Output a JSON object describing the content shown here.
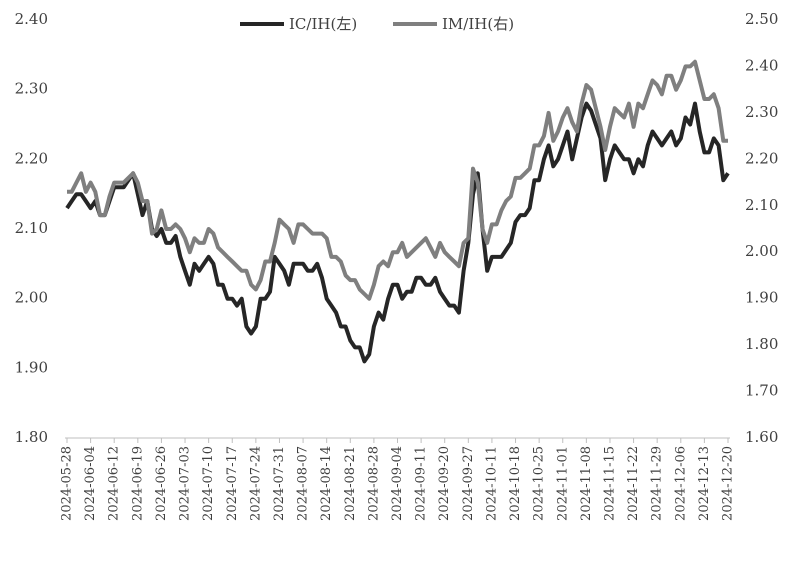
{
  "chart_data": {
    "type": "line",
    "categories": [
      "2024-05-28",
      null,
      null,
      null,
      null,
      "2024-06-04",
      null,
      null,
      null,
      null,
      "2024-06-12",
      null,
      null,
      null,
      null,
      "2024-06-19",
      null,
      null,
      null,
      null,
      "2024-06-26",
      null,
      null,
      null,
      null,
      "2024-07-03",
      null,
      null,
      null,
      null,
      "2024-07-10",
      null,
      null,
      null,
      null,
      "2024-07-17",
      null,
      null,
      null,
      null,
      "2024-07-24",
      null,
      null,
      null,
      null,
      "2024-07-31",
      null,
      null,
      null,
      null,
      "2024-08-07",
      null,
      null,
      null,
      null,
      "2024-08-14",
      null,
      null,
      null,
      null,
      "2024-08-21",
      null,
      null,
      null,
      null,
      "2024-08-28",
      null,
      null,
      null,
      null,
      "2024-09-04",
      null,
      null,
      null,
      null,
      "2024-09-11",
      null,
      null,
      null,
      null,
      "2024-09-20",
      null,
      null,
      null,
      null,
      "2024-09-27",
      null,
      null,
      null,
      null,
      "2024-10-11",
      null,
      null,
      null,
      null,
      "2024-10-18",
      null,
      null,
      null,
      null,
      "2024-10-25",
      null,
      null,
      null,
      null,
      "2024-11-01",
      null,
      null,
      null,
      null,
      "2024-11-08",
      null,
      null,
      null,
      null,
      "2024-11-15",
      null,
      null,
      null,
      null,
      "2024-11-22",
      null,
      null,
      null,
      null,
      "2024-11-29",
      null,
      null,
      null,
      null,
      "2024-12-06",
      null,
      null,
      null,
      null,
      "2024-12-13",
      null,
      null,
      null,
      null,
      "2024-12-20"
    ],
    "series": [
      {
        "name": "IC/IH(左)",
        "color": "#262626",
        "axis": "y",
        "values": [
          2.13,
          2.14,
          2.15,
          2.15,
          2.14,
          2.13,
          2.14,
          2.12,
          2.12,
          2.14,
          2.16,
          2.16,
          2.16,
          2.17,
          2.18,
          2.15,
          2.12,
          2.14,
          2.1,
          2.09,
          2.1,
          2.08,
          2.08,
          2.09,
          2.06,
          2.04,
          2.02,
          2.05,
          2.04,
          2.05,
          2.06,
          2.05,
          2.02,
          2.02,
          2.0,
          2.0,
          1.99,
          2.0,
          1.96,
          1.95,
          1.96,
          2.0,
          2.0,
          2.01,
          2.06,
          2.05,
          2.04,
          2.02,
          2.05,
          2.05,
          2.05,
          2.04,
          2.04,
          2.05,
          2.03,
          2.0,
          1.99,
          1.98,
          1.96,
          1.96,
          1.94,
          1.93,
          1.93,
          1.91,
          1.92,
          1.96,
          1.98,
          1.97,
          2.0,
          2.02,
          2.02,
          2.0,
          2.01,
          2.01,
          2.03,
          2.03,
          2.02,
          2.02,
          2.03,
          2.01,
          2.0,
          1.99,
          1.99,
          1.98,
          2.04,
          2.08,
          2.15,
          2.18,
          2.1,
          2.04,
          2.06,
          2.06,
          2.06,
          2.07,
          2.08,
          2.11,
          2.12,
          2.12,
          2.13,
          2.17,
          2.17,
          2.2,
          2.22,
          2.19,
          2.2,
          2.22,
          2.24,
          2.2,
          2.23,
          2.26,
          2.28,
          2.27,
          2.25,
          2.23,
          2.17,
          2.2,
          2.22,
          2.21,
          2.2,
          2.2,
          2.18,
          2.2,
          2.19,
          2.22,
          2.24,
          2.23,
          2.22,
          2.23,
          2.24,
          2.22,
          2.23,
          2.26,
          2.25,
          2.28,
          2.24,
          2.21,
          2.21,
          2.23,
          2.22,
          2.17,
          2.18
        ]
      },
      {
        "name": "IM/IH(右)",
        "color": "#7f7f7f",
        "axis": "y2",
        "values": [
          2.13,
          2.13,
          2.15,
          2.17,
          2.13,
          2.15,
          2.13,
          2.08,
          2.08,
          2.12,
          2.15,
          2.15,
          2.15,
          2.16,
          2.17,
          2.15,
          2.11,
          2.11,
          2.04,
          2.05,
          2.09,
          2.05,
          2.05,
          2.06,
          2.05,
          2.03,
          2.0,
          2.03,
          2.02,
          2.02,
          2.05,
          2.04,
          2.01,
          2.0,
          1.99,
          1.98,
          1.97,
          1.96,
          1.96,
          1.93,
          1.92,
          1.94,
          1.98,
          1.98,
          2.02,
          2.07,
          2.06,
          2.05,
          2.02,
          2.06,
          2.06,
          2.05,
          2.04,
          2.04,
          2.04,
          2.03,
          1.99,
          1.99,
          1.98,
          1.95,
          1.94,
          1.94,
          1.92,
          1.91,
          1.9,
          1.93,
          1.97,
          1.98,
          1.97,
          2.0,
          2.0,
          2.02,
          1.99,
          2.0,
          2.01,
          2.02,
          2.03,
          2.01,
          1.99,
          2.02,
          2.0,
          1.99,
          1.98,
          1.97,
          2.02,
          2.03,
          2.18,
          2.15,
          2.05,
          2.02,
          2.06,
          2.06,
          2.09,
          2.11,
          2.12,
          2.16,
          2.16,
          2.17,
          2.18,
          2.23,
          2.23,
          2.25,
          2.3,
          2.24,
          2.26,
          2.29,
          2.31,
          2.28,
          2.26,
          2.32,
          2.36,
          2.35,
          2.31,
          2.27,
          2.22,
          2.27,
          2.31,
          2.3,
          2.29,
          2.32,
          2.27,
          2.32,
          2.31,
          2.34,
          2.37,
          2.36,
          2.34,
          2.38,
          2.38,
          2.35,
          2.37,
          2.4,
          2.4,
          2.41,
          2.37,
          2.33,
          2.33,
          2.34,
          2.31,
          2.24,
          2.24
        ]
      }
    ],
    "ylim": [
      1.8,
      2.4
    ],
    "yticks": [
      {
        "value": 1.8,
        "label": "1.80"
      },
      {
        "value": 1.9,
        "label": "1.90"
      },
      {
        "value": 2.0,
        "label": "2.00"
      },
      {
        "value": 2.1,
        "label": "2.10"
      },
      {
        "value": 2.2,
        "label": "2.20"
      },
      {
        "value": 2.3,
        "label": "2.30"
      },
      {
        "value": 2.4,
        "label": "2.40"
      }
    ],
    "y2lim": [
      1.6,
      2.5
    ],
    "y2ticks": [
      {
        "value": 1.6,
        "label": "1.60"
      },
      {
        "value": 1.7,
        "label": "1.70"
      },
      {
        "value": 1.8,
        "label": "1.80"
      },
      {
        "value": 1.9,
        "label": "1.90"
      },
      {
        "value": 2.0,
        "label": "2.00"
      },
      {
        "value": 2.1,
        "label": "2.10"
      },
      {
        "value": 2.2,
        "label": "2.20"
      },
      {
        "value": 2.3,
        "label": "2.30"
      },
      {
        "value": 2.4,
        "label": "2.40"
      },
      {
        "value": 2.5,
        "label": "2.50"
      }
    ],
    "grid": false,
    "legend": "top"
  }
}
